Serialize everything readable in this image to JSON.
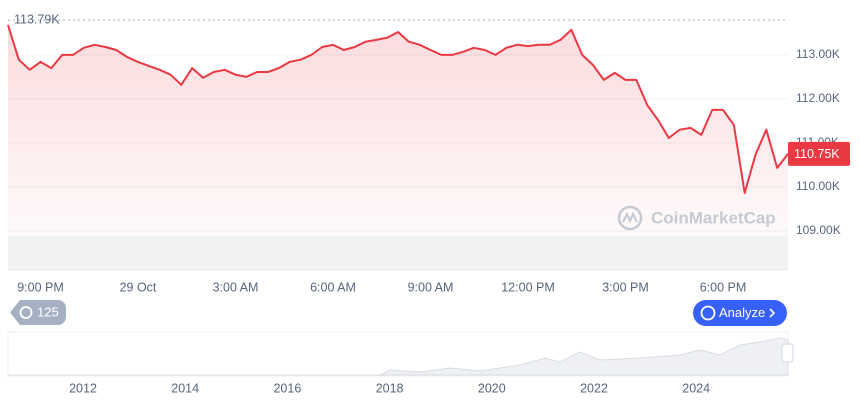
{
  "chart_data": {
    "type": "line",
    "categories": [
      null,
      null,
      null,
      "9:00 PM",
      null,
      null,
      null,
      null,
      null,
      null,
      null,
      null,
      "29 Oct",
      null,
      null,
      null,
      null,
      null,
      null,
      null,
      null,
      "3:00 AM",
      null,
      null,
      null,
      null,
      null,
      null,
      null,
      null,
      "6:00 AM",
      null,
      null,
      null,
      null,
      null,
      null,
      null,
      null,
      "9:00 AM",
      null,
      null,
      null,
      null,
      null,
      null,
      null,
      null,
      "12:00 PM",
      null,
      null,
      null,
      null,
      null,
      null,
      null,
      null,
      "3:00 PM",
      null,
      null,
      null,
      null,
      null,
      null,
      null,
      null,
      "6:00 PM",
      null,
      null,
      null,
      null,
      null,
      null
    ],
    "values": [
      113.68,
      112.89,
      112.66,
      112.84,
      112.7,
      113.0,
      113.0,
      113.16,
      113.23,
      113.18,
      113.11,
      112.95,
      112.84,
      112.75,
      112.66,
      112.55,
      112.32,
      112.7,
      112.48,
      112.61,
      112.66,
      112.55,
      112.5,
      112.61,
      112.61,
      112.7,
      112.84,
      112.89,
      113.0,
      113.18,
      113.23,
      113.11,
      113.18,
      113.3,
      113.34,
      113.39,
      113.52,
      113.3,
      113.23,
      113.11,
      113.0,
      113.0,
      113.07,
      113.16,
      113.11,
      113.0,
      113.16,
      113.23,
      113.2,
      113.23,
      113.23,
      113.34,
      113.57,
      113.0,
      112.77,
      112.43,
      112.59,
      112.43,
      112.43,
      111.86,
      111.52,
      111.11,
      111.3,
      111.34,
      111.18,
      111.75,
      111.75,
      111.41,
      109.86,
      110.73,
      111.3,
      110.43,
      110.75
    ],
    "color": "#ea3943",
    "ylim": [
      108.11,
      114.02
    ],
    "yticks": [
      {
        "value": 109,
        "label": "109.00K"
      },
      {
        "value": 110,
        "label": "110.00K"
      },
      {
        "value": 111,
        "label": "111.00K"
      },
      {
        "value": 112,
        "label": "112.00K"
      },
      {
        "value": 113,
        "label": "113.00K"
      }
    ],
    "grid": true,
    "max": {
      "value": 113.79,
      "label": "113.79K"
    },
    "current": {
      "value": 110.75,
      "label": "110.75K"
    },
    "watermark": "CoinMarketCap",
    "badge": 125,
    "button": "Analyze",
    "navigator_labels": [
      "2012",
      "2014",
      "2016",
      "2018",
      "2020",
      "2022",
      "2024"
    ]
  }
}
